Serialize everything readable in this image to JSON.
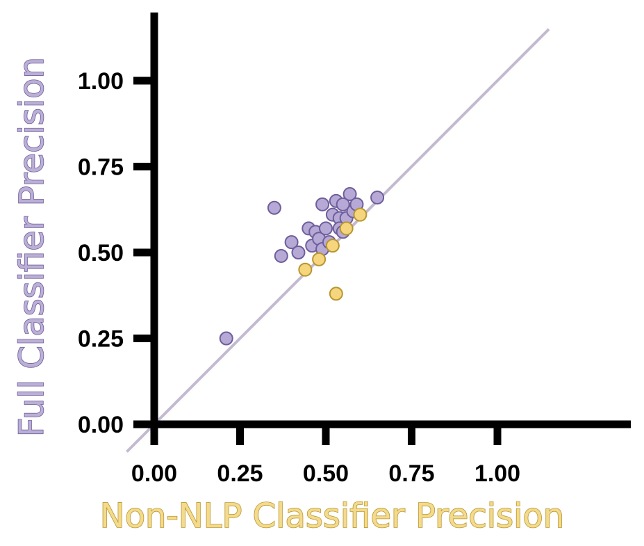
{
  "chart_data": {
    "type": "scatter",
    "title": "",
    "xlabel": "Non-NLP Classifier Precision",
    "ylabel": "Full Classifier Precision",
    "xlim": [
      0,
      1.2
    ],
    "ylim": [
      0,
      1.2
    ],
    "x_ticks": [
      "0.00",
      "0.25",
      "0.50",
      "0.75",
      "1.00"
    ],
    "y_ticks": [
      "0.00",
      "0.25",
      "0.50",
      "0.75",
      "1.00"
    ],
    "grid": false,
    "reference_line": {
      "type": "y=x",
      "color": "#C4BACF"
    },
    "series": [
      {
        "color": "#B7A9D6",
        "edge": "#6E5E9C",
        "points": [
          {
            "x": 0.21,
            "y": 0.25
          },
          {
            "x": 0.35,
            "y": 0.63
          },
          {
            "x": 0.37,
            "y": 0.49
          },
          {
            "x": 0.4,
            "y": 0.53
          },
          {
            "x": 0.42,
            "y": 0.5
          },
          {
            "x": 0.45,
            "y": 0.57
          },
          {
            "x": 0.46,
            "y": 0.52
          },
          {
            "x": 0.47,
            "y": 0.56
          },
          {
            "x": 0.48,
            "y": 0.54
          },
          {
            "x": 0.49,
            "y": 0.51
          },
          {
            "x": 0.49,
            "y": 0.64
          },
          {
            "x": 0.5,
            "y": 0.57
          },
          {
            "x": 0.51,
            "y": 0.53
          },
          {
            "x": 0.52,
            "y": 0.61
          },
          {
            "x": 0.53,
            "y": 0.65
          },
          {
            "x": 0.54,
            "y": 0.6
          },
          {
            "x": 0.54,
            "y": 0.57
          },
          {
            "x": 0.55,
            "y": 0.64
          },
          {
            "x": 0.55,
            "y": 0.56
          },
          {
            "x": 0.56,
            "y": 0.6
          },
          {
            "x": 0.57,
            "y": 0.67
          },
          {
            "x": 0.58,
            "y": 0.62
          },
          {
            "x": 0.59,
            "y": 0.64
          },
          {
            "x": 0.65,
            "y": 0.66
          }
        ]
      },
      {
        "color": "#F5D67F",
        "edge": "#B8962E",
        "points": [
          {
            "x": 0.44,
            "y": 0.45
          },
          {
            "x": 0.48,
            "y": 0.48
          },
          {
            "x": 0.52,
            "y": 0.52
          },
          {
            "x": 0.53,
            "y": 0.38
          },
          {
            "x": 0.56,
            "y": 0.57
          },
          {
            "x": 0.6,
            "y": 0.61
          }
        ]
      }
    ]
  }
}
